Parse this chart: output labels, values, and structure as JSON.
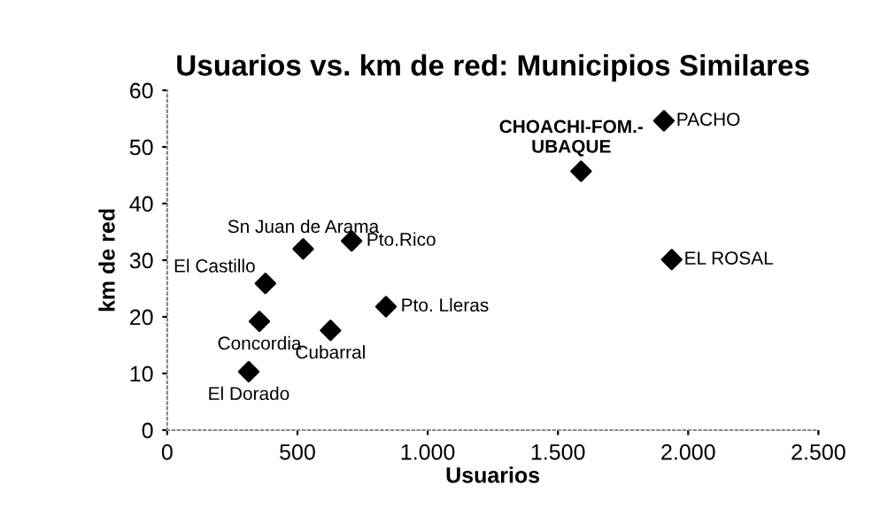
{
  "chart_data": {
    "type": "scatter",
    "title": "Usuarios vs. km de red: Municipios Similares",
    "xlabel": "Usuarios",
    "ylabel": "km de red",
    "x": [
      313,
      354,
      377,
      522,
      708,
      627,
      840,
      1589,
      1907,
      1937
    ],
    "series": [
      {
        "color": "#000000",
        "values": [
          10.3,
          19.2,
          25.9,
          32.0,
          33.4,
          17.6,
          21.8,
          45.7,
          54.6,
          30.1
        ]
      }
    ],
    "marker": "diamond",
    "grid": false,
    "legend": false,
    "xlim": [
      0,
      2500
    ],
    "xticks": [
      0,
      500,
      {
        "value": 1000,
        "label": "1.000"
      },
      {
        "value": 1500,
        "label": "1.500"
      },
      {
        "value": 2000,
        "label": "2.000"
      },
      {
        "value": 2500,
        "label": "2.500"
      }
    ],
    "ylim": [
      0,
      60
    ],
    "yticks": [
      0,
      10,
      20,
      30,
      40,
      50,
      60
    ],
    "annotations": [
      {
        "text": "El Dorado",
        "x": 313,
        "y": 10.3
      },
      {
        "text": "Concordia",
        "x": 354,
        "y": 19.2
      },
      {
        "text": "El Castillo",
        "x": 377,
        "y": 25.9
      },
      {
        "text": "Sn Juan de Arama",
        "x": 522,
        "y": 32.0
      },
      {
        "text": "Pto.Rico",
        "x": 708,
        "y": 33.4
      },
      {
        "text": "Cubarral",
        "x": 627,
        "y": 17.6
      },
      {
        "text": "Pto. Lleras",
        "x": 840,
        "y": 21.8
      },
      {
        "text": "CHOACHI-FOM.-\nUBAQUE",
        "x": 1589,
        "y": 45.7
      },
      {
        "text": "PACHO",
        "x": 1907,
        "y": 54.6
      },
      {
        "text": "EL ROSAL",
        "x": 1937,
        "y": 30.1
      }
    ]
  }
}
